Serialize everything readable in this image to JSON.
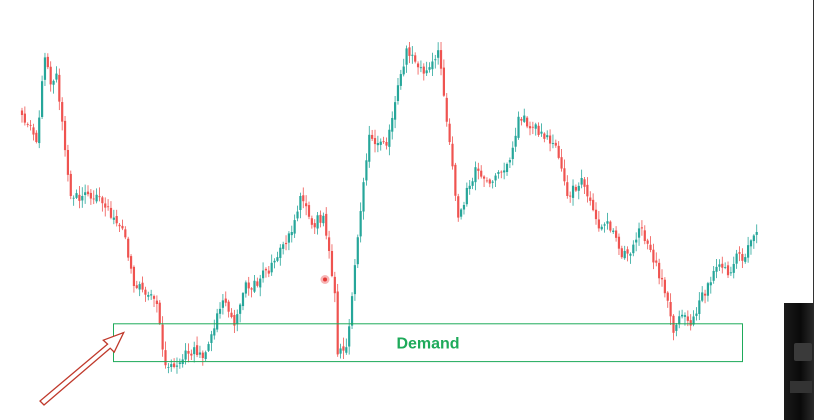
{
  "chart_data": {
    "type": "candlestick",
    "title": "",
    "xlabel": "",
    "ylabel": "",
    "ylim": [
      0,
      100
    ],
    "grid": false,
    "colors": {
      "bull": "#26a69a",
      "bear": "#ef5350",
      "zone": "#1eaa5a",
      "arrow": "#c0392b",
      "marker": "#e53935"
    },
    "anchors": [
      [
        0,
        72.5
      ],
      [
        5,
        65
      ],
      [
        8,
        88.5
      ],
      [
        10,
        81
      ],
      [
        12,
        84
      ],
      [
        17,
        50
      ],
      [
        18,
        49.5
      ],
      [
        23,
        50.5
      ],
      [
        28,
        48
      ],
      [
        32,
        44
      ],
      [
        35,
        41
      ],
      [
        39,
        25
      ],
      [
        42,
        24
      ],
      [
        47,
        20
      ],
      [
        50,
        3
      ],
      [
        53,
        2.5
      ],
      [
        60,
        8
      ],
      [
        63,
        5
      ],
      [
        70,
        21
      ],
      [
        74,
        14
      ],
      [
        78,
        26
      ],
      [
        80,
        24
      ],
      [
        88,
        32
      ],
      [
        94,
        40
      ],
      [
        97,
        50
      ],
      [
        101,
        42
      ],
      [
        105,
        44.5
      ],
      [
        109,
        23
      ],
      [
        110,
        6
      ],
      [
        113,
        8
      ],
      [
        121,
        67
      ],
      [
        127,
        64
      ],
      [
        134,
        91
      ],
      [
        140,
        84
      ],
      [
        145,
        90.5
      ],
      [
        152,
        44
      ],
      [
        158,
        58
      ],
      [
        164,
        54
      ],
      [
        170,
        60
      ],
      [
        173,
        72
      ],
      [
        178,
        69
      ],
      [
        186,
        64
      ],
      [
        190,
        50
      ],
      [
        195,
        55
      ],
      [
        201,
        41
      ],
      [
        204,
        43
      ],
      [
        209,
        33
      ],
      [
        211,
        34
      ],
      [
        216,
        41
      ],
      [
        219,
        35
      ],
      [
        224,
        23
      ],
      [
        227,
        12
      ],
      [
        230,
        17
      ],
      [
        233,
        14
      ],
      [
        236,
        21
      ],
      [
        243,
        31
      ],
      [
        246,
        28
      ],
      [
        249,
        34
      ],
      [
        251,
        32
      ],
      [
        256,
        40
      ]
    ],
    "zones": [
      {
        "label": "Demand",
        "top": 14.5,
        "bottom": 4
      }
    ]
  }
}
